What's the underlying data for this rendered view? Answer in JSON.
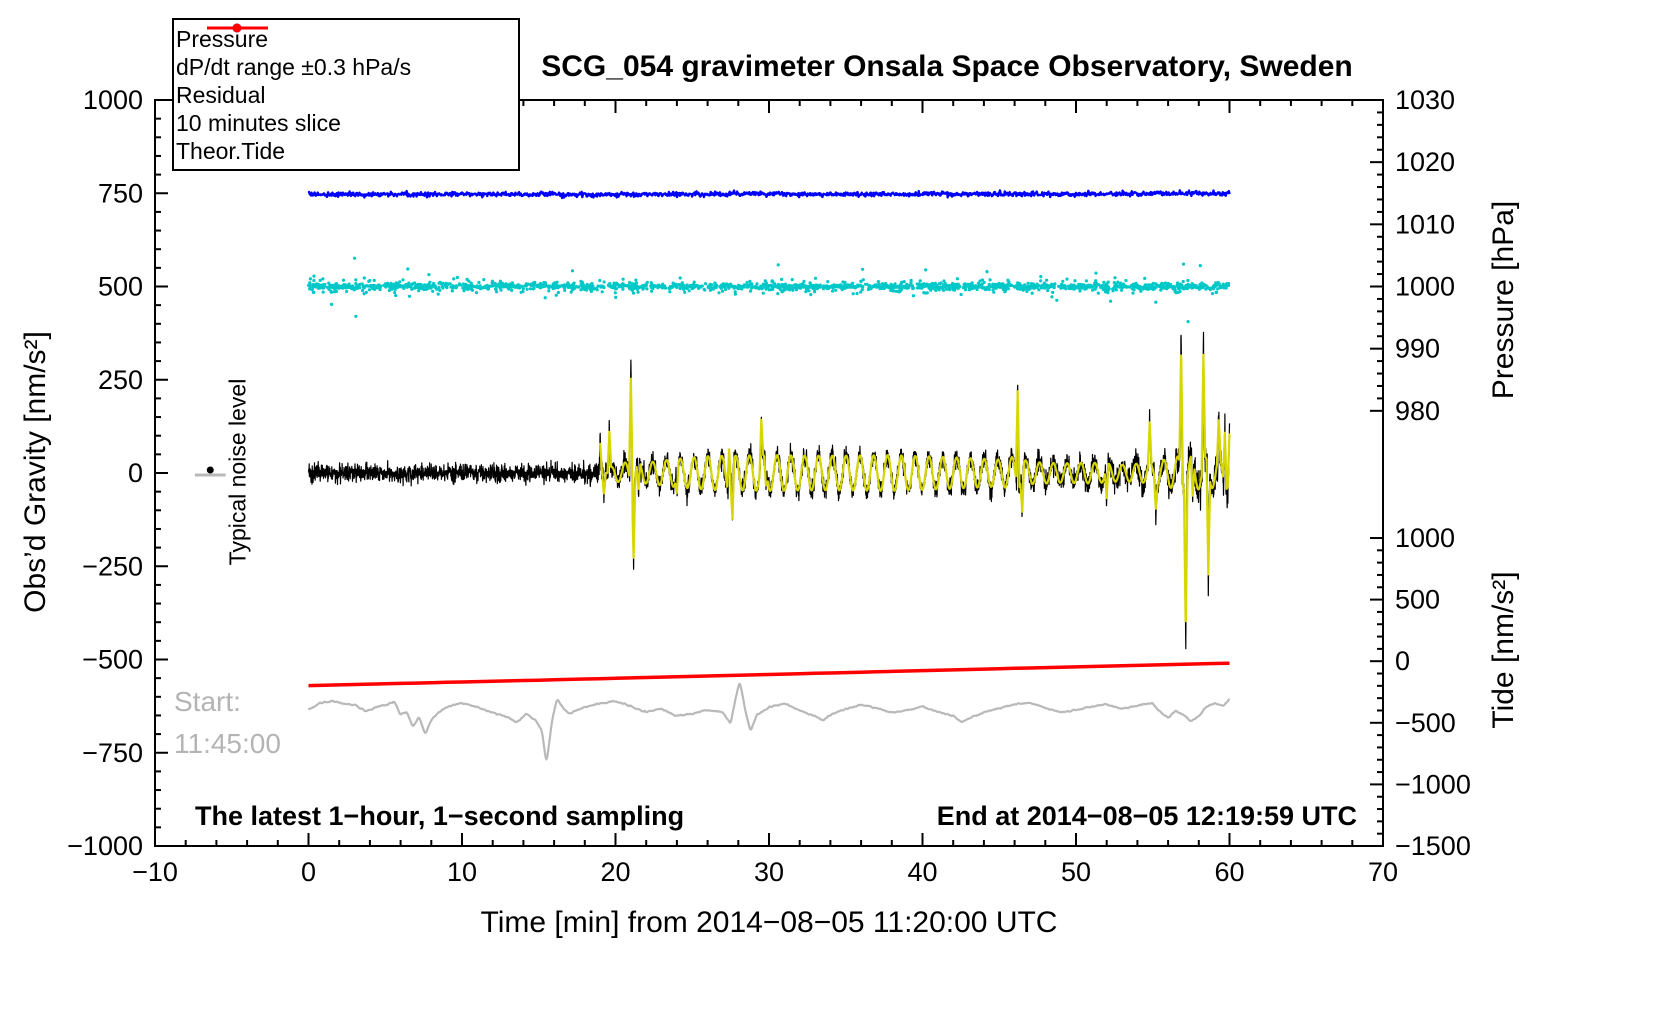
{
  "legend": {
    "entries": [
      {
        "label": "Pressure",
        "color": "#0000ff",
        "marker": "dot-line"
      },
      {
        "label": "dP/dt range ±0.3 hPa/s",
        "color": "#00c8c8",
        "marker": "dot-line"
      },
      {
        "label": "Residual",
        "color": "#000000",
        "marker": "line"
      },
      {
        "label": "10 minutes slice",
        "color": "#b9b9b9",
        "marker": "line"
      },
      {
        "label": "Theor.Tide",
        "color": "#ff0000",
        "marker": "dot-line"
      }
    ]
  },
  "chart_data": {
    "type": "line",
    "title": "SCG_054 gravimeter Onsala Space Observatory, Sweden",
    "xlabel": "Time [min] from 2014−08−05 11:20:00 UTC",
    "ylabel_left": "Obs’d Gravity [nm/s²]",
    "ylabel_right_top": "Pressure [hPa]",
    "ylabel_right_bottom": "Tide [nm/s²]",
    "annotations": {
      "noise": "Typical noise level",
      "start_label": "Start:",
      "start_time": "11:45:00",
      "footer_left": "The latest 1−hour, 1−second sampling",
      "footer_right": "End at 2014−08−05 12:19:59 UTC"
    },
    "axes": {
      "x": {
        "min": -10,
        "max": 70,
        "minor": 2,
        "major": 10,
        "ticks": [
          {
            "v": -10,
            "label": "−10"
          },
          {
            "v": 0,
            "label": "0"
          },
          {
            "v": 10,
            "label": "10"
          },
          {
            "v": 20,
            "label": "20"
          },
          {
            "v": 30,
            "label": "30"
          },
          {
            "v": 40,
            "label": "40"
          },
          {
            "v": 50,
            "label": "50"
          },
          {
            "v": 60,
            "label": "60"
          },
          {
            "v": 70,
            "label": "70"
          }
        ]
      },
      "gravity": {
        "min": -1000,
        "max": 1000,
        "minor": 50,
        "major": 250,
        "ticks": [
          {
            "v": -1000,
            "label": "−1000"
          },
          {
            "v": -750,
            "label": "−750"
          },
          {
            "v": -500,
            "label": "−500"
          },
          {
            "v": -250,
            "label": "−250"
          },
          {
            "v": 0,
            "label": "0"
          },
          {
            "v": 250,
            "label": "250"
          },
          {
            "v": 500,
            "label": "500"
          },
          {
            "v": 750,
            "label": "750"
          },
          {
            "v": 1000,
            "label": "1000"
          }
        ]
      },
      "pressure": {
        "ref": 1000,
        "ref_g": 500,
        "g_per_unit": 16.667,
        "min": 980,
        "max": 1030,
        "minor": 2,
        "major": 10,
        "ticks": [
          {
            "v": 1030,
            "label": "1030"
          },
          {
            "v": 1020,
            "label": "1020"
          },
          {
            "v": 1010,
            "label": "1010"
          },
          {
            "v": 1000,
            "label": "1000"
          },
          {
            "v": 990,
            "label": "990"
          },
          {
            "v": 980,
            "label": "980"
          }
        ]
      },
      "tide": {
        "ref": -1500,
        "ref_g": -1000,
        "g_per_unit": 0.3303,
        "min": -1500,
        "max": 1000,
        "minor": 100,
        "major": 500,
        "ticks": [
          {
            "v": 1000,
            "label": "1000"
          },
          {
            "v": 500,
            "label": "500"
          },
          {
            "v": 0,
            "label": "0"
          },
          {
            "v": -500,
            "label": "−500"
          },
          {
            "v": -1000,
            "label": "−1000"
          },
          {
            "v": -1500,
            "label": "−1500"
          }
        ]
      }
    },
    "noise_marker": {
      "x": -6.4,
      "gravity": 0,
      "bar_half_min": 1.0
    },
    "series": [
      {
        "name": "10 minutes slice",
        "type": "anchorline",
        "axis": "gravity",
        "color": "#b9b9b9",
        "width": 2.2,
        "dt": 0.05,
        "noise_sigma": 1.5,
        "smooth": true,
        "anchors": [
          [
            0,
            -635
          ],
          [
            0.7,
            -618
          ],
          [
            1.5,
            -612
          ],
          [
            2.2,
            -618
          ],
          [
            3,
            -622
          ],
          [
            3.7,
            -638
          ],
          [
            4.3,
            -630
          ],
          [
            5,
            -622
          ],
          [
            5.6,
            -612
          ],
          [
            6,
            -648
          ],
          [
            6.4,
            -640
          ],
          [
            6.8,
            -680
          ],
          [
            7.2,
            -655
          ],
          [
            7.6,
            -700
          ],
          [
            8,
            -662
          ],
          [
            8.5,
            -640
          ],
          [
            9,
            -628
          ],
          [
            10,
            -616
          ],
          [
            11,
            -628
          ],
          [
            12,
            -642
          ],
          [
            13,
            -655
          ],
          [
            13.6,
            -668
          ],
          [
            14.2,
            -645
          ],
          [
            14.8,
            -662
          ],
          [
            15.2,
            -690
          ],
          [
            15.5,
            -778
          ],
          [
            15.9,
            -655
          ],
          [
            16.2,
            -605
          ],
          [
            16.6,
            -632
          ],
          [
            17,
            -645
          ],
          [
            18,
            -628
          ],
          [
            19,
            -618
          ],
          [
            20,
            -612
          ],
          [
            21,
            -626
          ],
          [
            22,
            -642
          ],
          [
            23,
            -632
          ],
          [
            24,
            -652
          ],
          [
            25,
            -645
          ],
          [
            26,
            -636
          ],
          [
            27,
            -642
          ],
          [
            27.5,
            -672
          ],
          [
            27.8,
            -608
          ],
          [
            28.1,
            -558
          ],
          [
            28.5,
            -645
          ],
          [
            28.8,
            -692
          ],
          [
            29.2,
            -648
          ],
          [
            30,
            -628
          ],
          [
            31,
            -618
          ],
          [
            32,
            -636
          ],
          [
            33,
            -652
          ],
          [
            33.5,
            -664
          ],
          [
            34,
            -648
          ],
          [
            35,
            -632
          ],
          [
            36,
            -622
          ],
          [
            37,
            -630
          ],
          [
            38,
            -642
          ],
          [
            39,
            -636
          ],
          [
            40,
            -626
          ],
          [
            41,
            -640
          ],
          [
            42,
            -652
          ],
          [
            42.6,
            -668
          ],
          [
            43.2,
            -655
          ],
          [
            44,
            -642
          ],
          [
            45,
            -630
          ],
          [
            46,
            -620
          ],
          [
            47,
            -616
          ],
          [
            48,
            -630
          ],
          [
            49,
            -642
          ],
          [
            50,
            -636
          ],
          [
            51,
            -626
          ],
          [
            52,
            -620
          ],
          [
            53,
            -632
          ],
          [
            54,
            -624
          ],
          [
            55,
            -616
          ],
          [
            55.5,
            -642
          ],
          [
            56,
            -656
          ],
          [
            56.5,
            -638
          ],
          [
            57,
            -648
          ],
          [
            57.5,
            -666
          ],
          [
            58,
            -652
          ],
          [
            58.5,
            -626
          ],
          [
            59,
            -618
          ],
          [
            59.6,
            -624
          ],
          [
            60,
            -606
          ]
        ]
      },
      {
        "name": "Theor.Tide",
        "type": "anchorline",
        "axis": "tide",
        "color": "#ff0000",
        "width": 3.5,
        "dt": 1,
        "noise_sigma": 0,
        "anchors": [
          [
            0,
            -198
          ],
          [
            15,
            -154
          ],
          [
            30,
            -108
          ],
          [
            45,
            -61
          ],
          [
            60,
            -16
          ]
        ]
      },
      {
        "name": "Residual",
        "type": "residual",
        "axis": "gravity",
        "color": "#000000",
        "width": 1.2,
        "osc": {
          "start": 19.5,
          "period": 0.9,
          "amp": [
            [
              0,
              0
            ],
            [
              19,
              0
            ],
            [
              20,
              22
            ],
            [
              21,
              32
            ],
            [
              22,
              28
            ],
            [
              24,
              38
            ],
            [
              26,
              45
            ],
            [
              30,
              48
            ],
            [
              34,
              46
            ],
            [
              38,
              48
            ],
            [
              42,
              42
            ],
            [
              45,
              36
            ],
            [
              46,
              44
            ],
            [
              47,
              30
            ],
            [
              49,
              26
            ],
            [
              51,
              28
            ],
            [
              53,
              22
            ],
            [
              55,
              28
            ],
            [
              56,
              38
            ],
            [
              57,
              48
            ],
            [
              58,
              44
            ],
            [
              59,
              40
            ],
            [
              60,
              46
            ]
          ]
        },
        "noise": [
          [
            0,
            12
          ],
          [
            18,
            12
          ],
          [
            19,
            16
          ],
          [
            22,
            13
          ],
          [
            44,
            13
          ],
          [
            50,
            16
          ],
          [
            54,
            20
          ],
          [
            56,
            22
          ],
          [
            60,
            19
          ]
        ],
        "spikes": [
          [
            19.0,
            95
          ],
          [
            19.25,
            -70
          ],
          [
            19.6,
            120
          ],
          [
            21.0,
            330
          ],
          [
            21.18,
            -240
          ],
          [
            21.5,
            -85
          ],
          [
            24.0,
            -62
          ],
          [
            27.4,
            128
          ],
          [
            27.62,
            -152
          ],
          [
            29.5,
            132
          ],
          [
            29.8,
            -58
          ],
          [
            46.2,
            300
          ],
          [
            46.5,
            -122
          ],
          [
            52.0,
            -98
          ],
          [
            54.8,
            128
          ],
          [
            55.2,
            -82
          ],
          [
            56.85,
            400
          ],
          [
            57.15,
            -455
          ],
          [
            57.6,
            -118
          ],
          [
            58.3,
            340
          ],
          [
            58.62,
            -330
          ],
          [
            59.3,
            118
          ],
          [
            59.7,
            172
          ],
          [
            60.0,
            125
          ]
        ]
      },
      {
        "name": "Filtered residual",
        "type": "filtered",
        "axis": "gravity",
        "color": "#d6d600",
        "width": 2.2,
        "from": 19
      },
      {
        "name": "dP/dt range",
        "type": "scatter",
        "axis": "gravity",
        "color": "#00c8c8",
        "r": 1.6,
        "n": 1800,
        "center": 500,
        "sigma_core": 4,
        "sigma_wide": 9,
        "sigma_out": 22,
        "outliers": [
          [
            1.5,
            452
          ],
          [
            3.0,
            576
          ],
          [
            3.08,
            420
          ],
          [
            17.2,
            542
          ],
          [
            30.6,
            558
          ],
          [
            36.1,
            546
          ],
          [
            44.2,
            540
          ],
          [
            51.3,
            536
          ],
          [
            55.2,
            458
          ],
          [
            57.0,
            560
          ],
          [
            57.3,
            406
          ],
          [
            58.1,
            556
          ]
        ]
      },
      {
        "name": "Pressure",
        "type": "anchorline",
        "axis": "pressure",
        "color": "#0000ff",
        "width": 2.4,
        "dt": 0.04,
        "noise_sigma": 0.18,
        "anchors": [
          [
            0,
            1014.8
          ],
          [
            10,
            1014.85
          ],
          [
            20,
            1014.8
          ],
          [
            30,
            1014.9
          ],
          [
            40,
            1014.85
          ],
          [
            50,
            1014.9
          ],
          [
            60,
            1015.0
          ]
        ]
      }
    ]
  }
}
